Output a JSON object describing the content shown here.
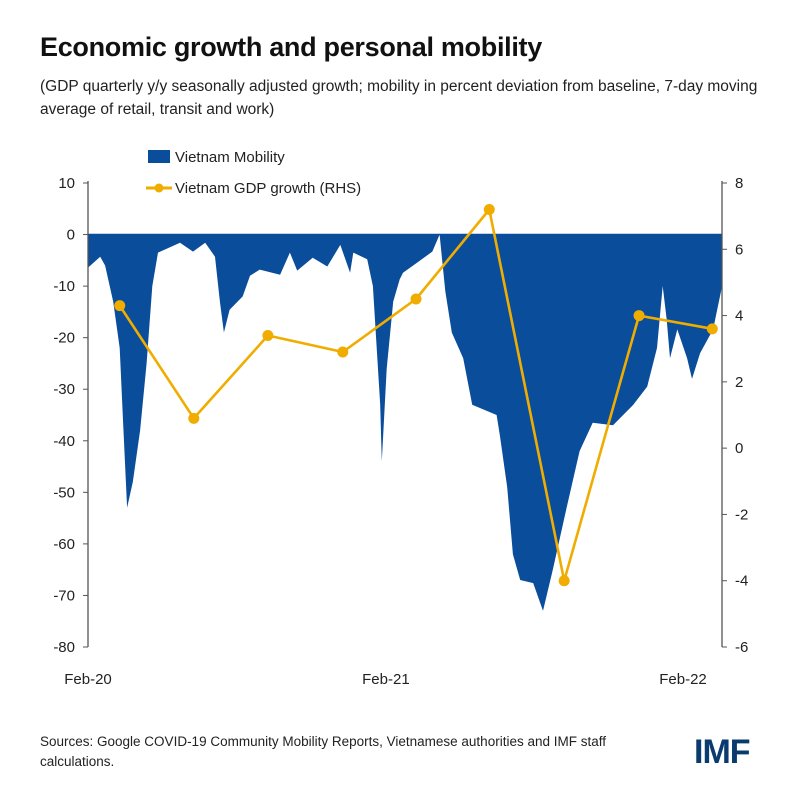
{
  "title": "Economic growth and personal mobility",
  "subtitle": "(GDP quarterly y/y seasonally adjusted growth; mobility in percent deviation from baseline, 7-day moving average of retail, transit and work)",
  "source": "Sources: Google COVID-19 Community Mobility Reports, Vietnamese authorities and IMF staff calculations.",
  "logo": "IMF",
  "colors": {
    "mobility": "#0a4d9b",
    "gdp": "#f0ad00",
    "axis": "#555555"
  },
  "chart_data": {
    "type": "area+line",
    "legend_placement": "top-left",
    "grid": false,
    "x_ticks": [
      {
        "label": "Feb-20",
        "date": "2020-02-15"
      },
      {
        "label": "Feb-21",
        "date": "2021-02-15"
      },
      {
        "label": "Feb-22",
        "date": "2022-02-15"
      }
    ],
    "y_left": {
      "lim": [
        -80,
        10
      ],
      "ticks": [
        10,
        0,
        -10,
        -20,
        -30,
        -40,
        -50,
        -60,
        -70,
        -80
      ]
    },
    "y_right": {
      "lim": [
        -6,
        8
      ],
      "ticks": [
        8,
        6,
        4,
        2,
        0,
        -2,
        -4,
        -6
      ]
    },
    "series": [
      {
        "name": "Vietnam Mobility",
        "type": "area",
        "axis": "left",
        "points": [
          [
            "2020-02-15",
            -6.4
          ],
          [
            "2020-03-01",
            -4.3
          ],
          [
            "2020-03-07",
            -6
          ],
          [
            "2020-03-17",
            -13
          ],
          [
            "2020-03-25",
            -22
          ],
          [
            "2020-03-29",
            -36
          ],
          [
            "2020-04-03",
            -53
          ],
          [
            "2020-04-10",
            -48
          ],
          [
            "2020-04-19",
            -38
          ],
          [
            "2020-04-27",
            -25
          ],
          [
            "2020-05-04",
            -10
          ],
          [
            "2020-05-11",
            -3.5
          ],
          [
            "2020-06-07",
            -1.6
          ],
          [
            "2020-06-23",
            -3.3
          ],
          [
            "2020-07-08",
            -1.6
          ],
          [
            "2020-07-20",
            -4.3
          ],
          [
            "2020-07-26",
            -13
          ],
          [
            "2020-07-31",
            -19
          ],
          [
            "2020-08-07",
            -14.6
          ],
          [
            "2020-08-23",
            -12
          ],
          [
            "2020-09-01",
            -8
          ],
          [
            "2020-09-13",
            -6.8
          ],
          [
            "2020-10-08",
            -7.8
          ],
          [
            "2020-10-20",
            -3.5
          ],
          [
            "2020-10-29",
            -7
          ],
          [
            "2020-11-17",
            -4.5
          ],
          [
            "2020-12-05",
            -6.2
          ],
          [
            "2020-12-21",
            -2
          ],
          [
            "2021-01-02",
            -7.4
          ],
          [
            "2021-01-06",
            -3.5
          ],
          [
            "2021-01-23",
            -4.8
          ],
          [
            "2021-01-30",
            -10
          ],
          [
            "2021-02-08",
            -33
          ],
          [
            "2021-02-10",
            -44
          ],
          [
            "2021-02-16",
            -26
          ],
          [
            "2021-02-24",
            -13
          ],
          [
            "2021-03-04",
            -8.7
          ],
          [
            "2021-03-08",
            -7.4
          ],
          [
            "2021-03-25",
            -5.5
          ],
          [
            "2021-04-13",
            -3.3
          ],
          [
            "2021-04-22",
            0
          ],
          [
            "2021-04-29",
            -11
          ],
          [
            "2021-05-07",
            -19
          ],
          [
            "2021-05-21",
            -24
          ],
          [
            "2021-06-01",
            -33
          ],
          [
            "2021-07-01",
            -35
          ],
          [
            "2021-07-05",
            -39
          ],
          [
            "2021-07-14",
            -49
          ],
          [
            "2021-07-21",
            -62
          ],
          [
            "2021-07-30",
            -67
          ],
          [
            "2021-08-15",
            -67.6
          ],
          [
            "2021-08-27",
            -73
          ],
          [
            "2021-09-08",
            -65
          ],
          [
            "2021-09-25",
            -53
          ],
          [
            "2021-10-11",
            -42
          ],
          [
            "2021-10-27",
            -36.5
          ],
          [
            "2021-11-21",
            -37
          ],
          [
            "2021-12-16",
            -33
          ],
          [
            "2022-01-02",
            -29.5
          ],
          [
            "2022-01-14",
            -22
          ],
          [
            "2022-01-21",
            -10
          ],
          [
            "2022-01-26",
            -16.5
          ],
          [
            "2022-01-30",
            -24
          ],
          [
            "2022-02-08",
            -18.4
          ],
          [
            "2022-02-20",
            -24
          ],
          [
            "2022-02-26",
            -28
          ],
          [
            "2022-03-08",
            -23
          ],
          [
            "2022-03-24",
            -18.4
          ],
          [
            "2022-04-04",
            -10
          ]
        ]
      },
      {
        "name": "Vietnam GDP growth (RHS)",
        "type": "line",
        "axis": "right",
        "points": [
          [
            "2020-03-25",
            4.3
          ],
          [
            "2020-06-24",
            0.9
          ],
          [
            "2020-09-23",
            3.4
          ],
          [
            "2020-12-24",
            2.9
          ],
          [
            "2021-03-24",
            4.5
          ],
          [
            "2021-06-22",
            7.2
          ],
          [
            "2021-09-22",
            -4.0
          ],
          [
            "2021-12-23",
            4.0
          ],
          [
            "2022-03-23",
            3.6
          ]
        ]
      }
    ]
  }
}
